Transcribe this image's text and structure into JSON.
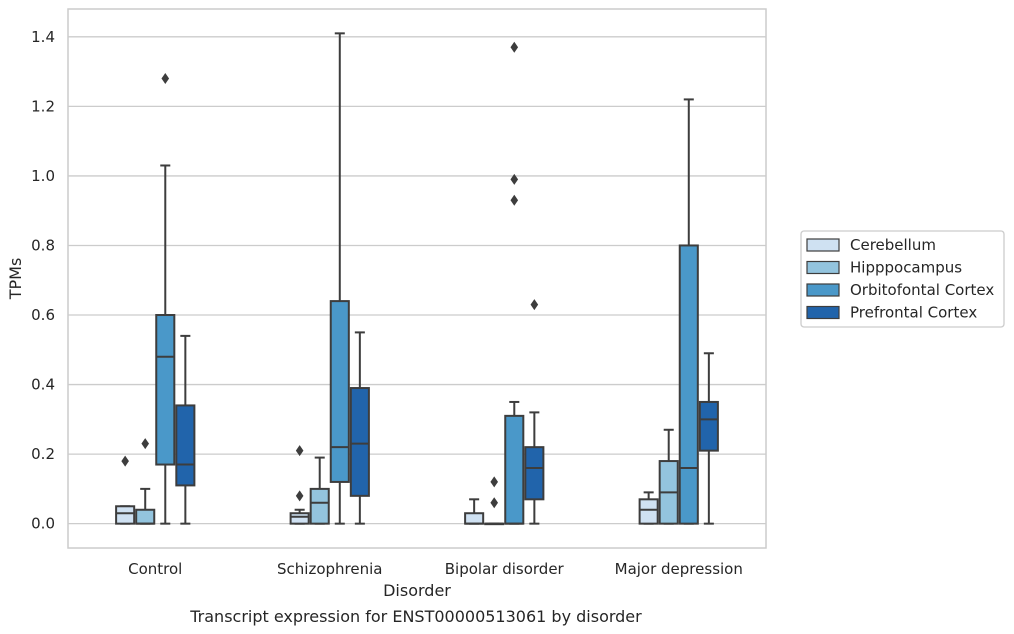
{
  "chart_data": {
    "type": "box",
    "caption": "Transcript expression for ENST00000513061 by disorder",
    "xlabel": "Disorder",
    "ylabel": "TPMs",
    "ylim": [
      -0.07,
      1.48
    ],
    "yticks": [
      0.0,
      0.2,
      0.4,
      0.6,
      0.8,
      1.0,
      1.2,
      1.4
    ],
    "ytick_labels": [
      "0.0",
      "0.2",
      "0.4",
      "0.6",
      "0.8",
      "1.0",
      "1.2",
      "1.4"
    ],
    "grid": "y",
    "legend_position": "right",
    "categories": [
      "Control",
      "Schizophrenia",
      "Bipolar disorder",
      "Major depression"
    ],
    "series": [
      {
        "name": "Cerebellum",
        "color": "#cfe1f2",
        "boxes": [
          {
            "whislo": 0.0,
            "q1": 0.0,
            "med": 0.03,
            "q3": 0.05,
            "whishi": 0.05,
            "fliers": [
              0.18
            ]
          },
          {
            "whislo": 0.0,
            "q1": 0.0,
            "med": 0.02,
            "q3": 0.03,
            "whishi": 0.04,
            "fliers": [
              0.08,
              0.21
            ]
          },
          {
            "whislo": 0.0,
            "q1": 0.0,
            "med": 0.0,
            "q3": 0.03,
            "whishi": 0.07,
            "fliers": []
          },
          {
            "whislo": 0.0,
            "q1": 0.0,
            "med": 0.04,
            "q3": 0.07,
            "whishi": 0.09,
            "fliers": []
          }
        ]
      },
      {
        "name": "Hipppocampus",
        "color": "#93c4de",
        "boxes": [
          {
            "whislo": 0.0,
            "q1": 0.0,
            "med": 0.0,
            "q3": 0.04,
            "whishi": 0.1,
            "fliers": [
              0.23
            ]
          },
          {
            "whislo": 0.0,
            "q1": 0.0,
            "med": 0.06,
            "q3": 0.1,
            "whishi": 0.19,
            "fliers": []
          },
          {
            "whislo": 0.0,
            "q1": 0.0,
            "med": 0.0,
            "q3": 0.0,
            "whishi": 0.0,
            "fliers": [
              0.06,
              0.12
            ]
          },
          {
            "whislo": 0.0,
            "q1": 0.0,
            "med": 0.09,
            "q3": 0.18,
            "whishi": 0.27,
            "fliers": []
          }
        ]
      },
      {
        "name": "Orbitofontal Cortex",
        "color": "#4a98c9",
        "boxes": [
          {
            "whislo": 0.0,
            "q1": 0.17,
            "med": 0.48,
            "q3": 0.6,
            "whishi": 1.03,
            "fliers": [
              1.28
            ]
          },
          {
            "whislo": 0.0,
            "q1": 0.12,
            "med": 0.22,
            "q3": 0.64,
            "whishi": 1.41,
            "fliers": []
          },
          {
            "whislo": 0.0,
            "q1": 0.0,
            "med": 0.0,
            "q3": 0.31,
            "whishi": 0.35,
            "fliers": [
              0.93,
              0.99,
              1.37
            ]
          },
          {
            "whislo": 0.0,
            "q1": 0.0,
            "med": 0.16,
            "q3": 0.8,
            "whishi": 1.22,
            "fliers": []
          }
        ]
      },
      {
        "name": "Prefrontal Cortex",
        "color": "#2164ab",
        "boxes": [
          {
            "whislo": 0.0,
            "q1": 0.11,
            "med": 0.17,
            "q3": 0.34,
            "whishi": 0.54,
            "fliers": []
          },
          {
            "whislo": 0.0,
            "q1": 0.08,
            "med": 0.23,
            "q3": 0.39,
            "whishi": 0.55,
            "fliers": []
          },
          {
            "whislo": 0.0,
            "q1": 0.07,
            "med": 0.16,
            "q3": 0.22,
            "whishi": 0.32,
            "fliers": [
              0.63
            ]
          },
          {
            "whislo": 0.0,
            "q1": 0.21,
            "med": 0.3,
            "q3": 0.35,
            "whishi": 0.49,
            "fliers": []
          }
        ]
      }
    ]
  }
}
